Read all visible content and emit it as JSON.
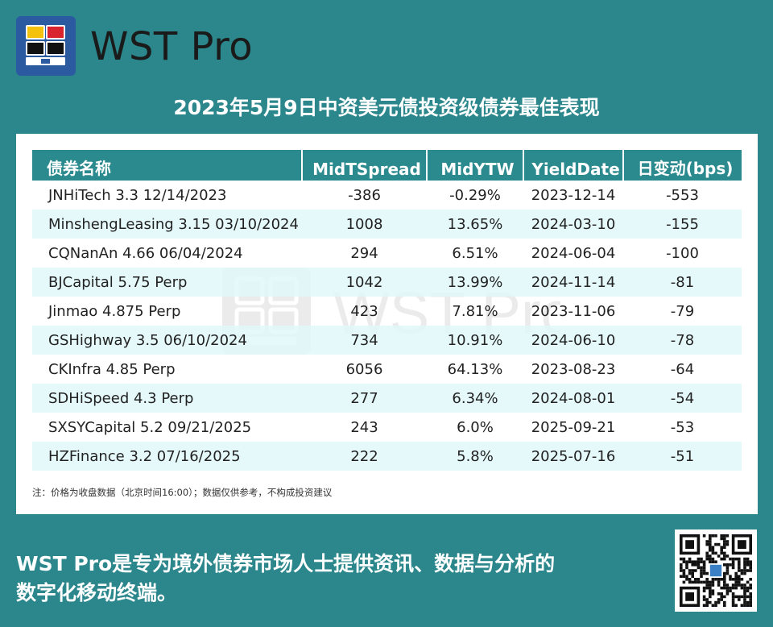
{
  "brand": {
    "name": "WST Pro"
  },
  "headline": "2023年5月9日中资美元债投资级债券最佳表现",
  "table": {
    "columns": [
      "债券名称",
      "MidTSpread",
      "MidYTW",
      "YieldDate",
      "日变动(bps)"
    ],
    "rows": [
      {
        "bond": "JNHiTech 3.3 12/14/2023",
        "mid_t_spread": "-386",
        "mid_ytw": "-0.29%",
        "yield_date": "2023-12-14",
        "daily_change": "-553"
      },
      {
        "bond": "MinshengLeasing 3.15 03/10/2024",
        "mid_t_spread": "1008",
        "mid_ytw": "13.65%",
        "yield_date": "2024-03-10",
        "daily_change": "-155"
      },
      {
        "bond": "CQNanAn 4.66 06/04/2024",
        "mid_t_spread": "294",
        "mid_ytw": "6.51%",
        "yield_date": "2024-06-04",
        "daily_change": "-100"
      },
      {
        "bond": "BJCapital 5.75 Perp",
        "mid_t_spread": "1042",
        "mid_ytw": "13.99%",
        "yield_date": "2024-11-14",
        "daily_change": "-81"
      },
      {
        "bond": "Jinmao 4.875 Perp",
        "mid_t_spread": "423",
        "mid_ytw": "7.81%",
        "yield_date": "2023-11-06",
        "daily_change": "-79"
      },
      {
        "bond": "GSHighway 3.5 06/10/2024",
        "mid_t_spread": "734",
        "mid_ytw": "10.91%",
        "yield_date": "2024-06-10",
        "daily_change": "-78"
      },
      {
        "bond": "CKInfra 4.85 Perp",
        "mid_t_spread": "6056",
        "mid_ytw": "64.13%",
        "yield_date": "2023-08-23",
        "daily_change": "-64"
      },
      {
        "bond": "SDHiSpeed 4.3 Perp",
        "mid_t_spread": "277",
        "mid_ytw": "6.34%",
        "yield_date": "2024-08-01",
        "daily_change": "-54"
      },
      {
        "bond": "SXSYCapital 5.2 09/21/2025",
        "mid_t_spread": "243",
        "mid_ytw": "6.0%",
        "yield_date": "2025-09-21",
        "daily_change": "-53"
      },
      {
        "bond": "HZFinance 3.2 07/16/2025",
        "mid_t_spread": "222",
        "mid_ytw": "5.8%",
        "yield_date": "2025-07-16",
        "daily_change": "-51"
      }
    ]
  },
  "note": "注：价格为收盘数据（北京时间16:00）；数据仅供参考，不构成投资建议",
  "watermark": "WST Pro",
  "tagline_line1": "WST Pro是专为境外债券市场人士提供资讯、数据与分析的",
  "tagline_line2": "数字化移动终端。",
  "colors": {
    "background": "#2b878c",
    "header": "#2a8a8e",
    "row_alt": "#e0f8fa",
    "logo": "#2c5aa0"
  },
  "icons": {
    "logo": "monitor-grid-icon",
    "qr": "qr-code-icon"
  }
}
